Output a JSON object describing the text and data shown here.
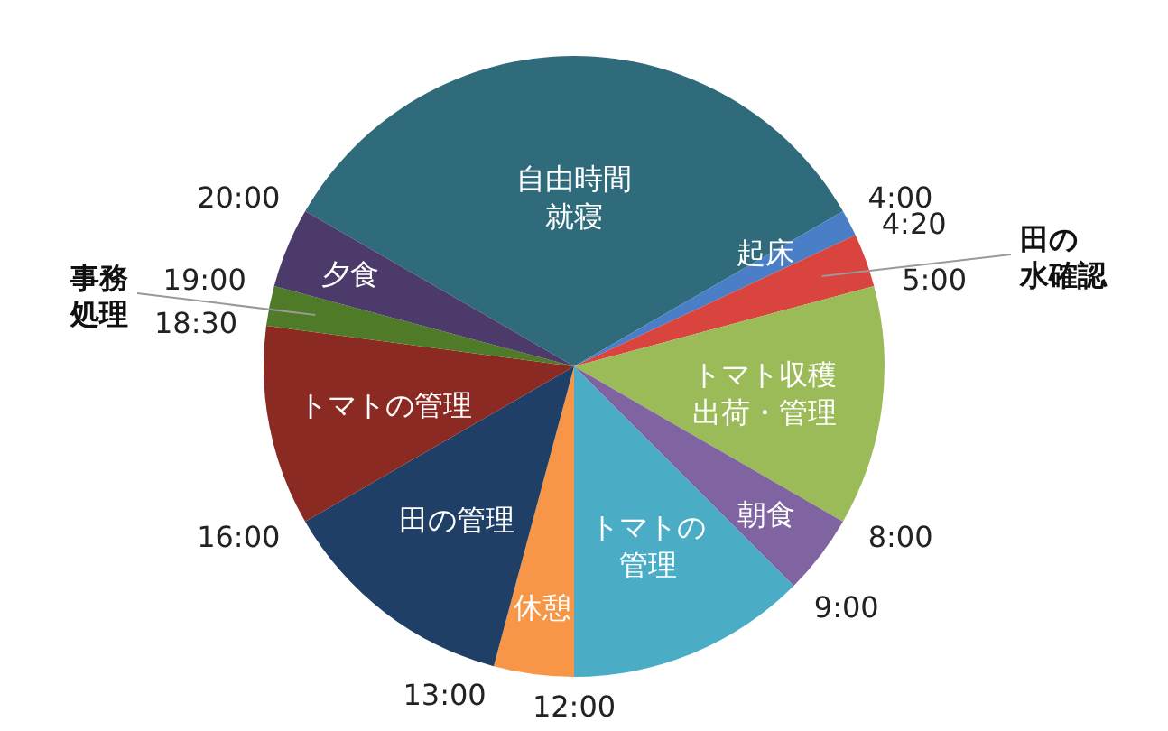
{
  "chart_data": {
    "type": "pie",
    "categories": [
      "自由時間就寝",
      "起床",
      "田の水確認",
      "トマト収穫出荷・管理",
      "朝食",
      "トマトの管理",
      "休憩",
      "田の管理",
      "トマトの管理",
      "事務処理",
      "夕食"
    ],
    "values": [
      33.3333,
      1.3889,
      2.7778,
      12.5,
      4.1667,
      12.5,
      4.1667,
      12.5,
      10.4167,
      2.0833,
      4.1667
    ],
    "colors": [
      "#2f6b7a",
      "#4a7fc7",
      "#d9453e",
      "#9bbb59",
      "#8064a2",
      "#4bacc6",
      "#f79646",
      "#1f3f66",
      "#8b2a22",
      "#4f7a28",
      "#4b3a6a"
    ],
    "annotations": [
      "20:00",
      "4:00",
      "4:20",
      "5:00",
      "8:00",
      "9:00",
      "12:00",
      "13:00",
      "16:00",
      "18:30",
      "19:00"
    ]
  }
}
